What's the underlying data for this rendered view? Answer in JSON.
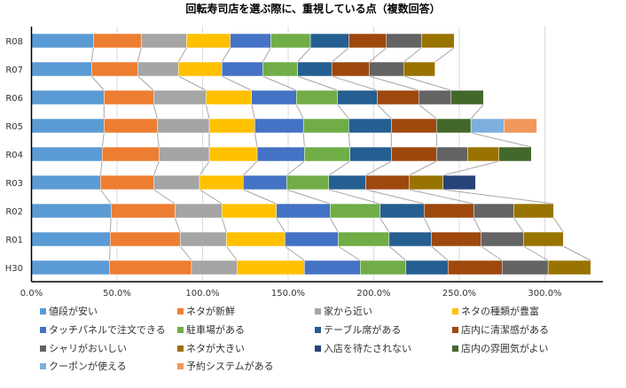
{
  "chart_data": {
    "type": "bar",
    "orientation": "horizontal",
    "stacked": true,
    "title": "回転寿司店を選ぶ際に、重視している点（複数回答）",
    "xlabel": "",
    "ylabel": "",
    "xlim": [
      0,
      334
    ],
    "xticks": [
      0,
      50,
      100,
      150,
      200,
      250,
      300
    ],
    "xtick_labels": [
      "0.0%",
      "50.0%",
      "100.0%",
      "150.0%",
      "200.0%",
      "250.0%",
      "300.0%"
    ],
    "grid": true,
    "legend_position": "bottom",
    "categories": [
      "R08",
      "R07",
      "R06",
      "R05",
      "R04",
      "R03",
      "R02",
      "R01",
      "H30"
    ],
    "series": [
      {
        "name": "値段が安い",
        "color": "#5B9BD5",
        "values": [
          36.2,
          35.1,
          42.4,
          42.4,
          41.3,
          40.3,
          46.5,
          46.0,
          45.5
        ]
      },
      {
        "name": "ネタが新鮮",
        "color": "#ED7D31",
        "values": [
          27.9,
          27.0,
          29.0,
          31.1,
          33.2,
          31.1,
          37.3,
          40.9,
          48.0
        ]
      },
      {
        "name": "家から近い",
        "color": "#A5A5A5",
        "values": [
          26.5,
          23.8,
          30.6,
          30.4,
          29.4,
          26.8,
          27.5,
          27.0,
          26.6
        ]
      },
      {
        "name": "ネタの種類が豊富",
        "color": "#FFC000",
        "values": [
          25.6,
          25.4,
          26.6,
          26.6,
          28.0,
          25.5,
          31.8,
          34.2,
          39.4
        ]
      },
      {
        "name": "タッチパネルで注文できる",
        "color": "#4472C4",
        "values": [
          23.6,
          23.8,
          26.2,
          28.4,
          27.6,
          25.4,
          31.4,
          31.1,
          32.6
        ]
      },
      {
        "name": "駐車場がある",
        "color": "#70AD47",
        "values": [
          23.2,
          20.4,
          24.1,
          26.5,
          26.6,
          24.6,
          29.2,
          29.8,
          26.7
        ]
      },
      {
        "name": "テーブル席がある",
        "color": "#255E91",
        "values": [
          22.4,
          20.0,
          23.1,
          24.9,
          24.2,
          21.6,
          25.7,
          24.6,
          24.6
        ]
      },
      {
        "name": "店内に清潔感がある",
        "color": "#9E480E",
        "values": [
          22.0,
          21.8,
          24.3,
          26.4,
          26.4,
          25.3,
          29.0,
          29.0,
          31.6
        ]
      },
      {
        "name": "シャリがおいしい",
        "color": "#636363",
        "values": [
          20.5,
          20.2,
          18.9,
          null,
          18.3,
          null,
          23.4,
          24.9,
          26.9
        ]
      },
      {
        "name": "ネタが大きい",
        "color": "#997300",
        "values": [
          19.1,
          18.3,
          null,
          null,
          18.2,
          19.9,
          23.3,
          23.3,
          24.9
        ]
      },
      {
        "name": "入店を待たされない",
        "color": "#264478",
        "values": [
          null,
          null,
          null,
          null,
          null,
          19.0,
          null,
          null,
          null
        ]
      },
      {
        "name": "店内の雰囲気がよい",
        "color": "#43682B",
        "values": [
          null,
          null,
          18.9,
          20.1,
          18.9,
          null,
          null,
          null,
          null
        ]
      },
      {
        "name": "クーポンが使える",
        "color": "#7CAFDD",
        "values": [
          null,
          null,
          null,
          19.3,
          null,
          null,
          null,
          null,
          null
        ]
      },
      {
        "name": "予約システムがある",
        "color": "#F1975A",
        "values": [
          null,
          null,
          null,
          19.2,
          null,
          null,
          null,
          null,
          null
        ]
      }
    ]
  }
}
